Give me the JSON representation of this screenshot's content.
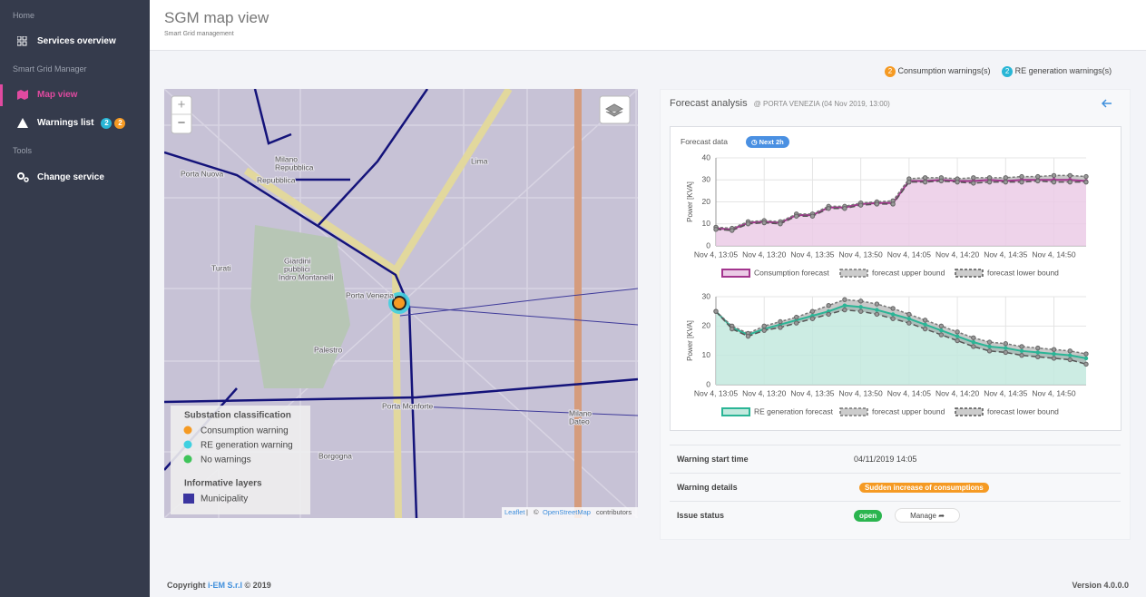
{
  "sidebar": {
    "sections": [
      {
        "title": "Home",
        "items": [
          "Services overview"
        ]
      },
      {
        "title": "Smart Grid Manager",
        "items": [
          "Map view",
          "Warnings list"
        ]
      },
      {
        "title": "Tools",
        "items": [
          "Change service"
        ]
      }
    ],
    "warning_badges": [
      2,
      2
    ]
  },
  "header": {
    "title": "SGM map view",
    "subtitle": "Smart Grid management"
  },
  "warnings": [
    {
      "count": 2,
      "label": "Consumption warnings(s)"
    },
    {
      "count": 2,
      "label": "RE generation warnings(s)"
    }
  ],
  "map": {
    "labels": [
      "Porta Nuova",
      "Milano",
      "Repubblica",
      "Repubblica",
      "Lima",
      "Turati",
      "Giardini",
      "pubblici",
      "Indro Montanelli",
      "Porta Venezia",
      "Palestro",
      "Porta Monforte",
      "Milano",
      "Dateo",
      "Borgogna"
    ],
    "zoom": [
      "+",
      "−"
    ],
    "legend": {
      "title": "Substation classification",
      "items": [
        "Consumption warning",
        "RE generation warning",
        "No warnings"
      ],
      "layers_title": "Informative layers",
      "layers": [
        "Municipality"
      ]
    },
    "attribution": [
      "Leaflet",
      "|",
      "©",
      "OpenStreetMap",
      "contributors"
    ]
  },
  "forecast": {
    "title": "Forecast analysis",
    "location": "@ PORTA VENEZIA (04 Nov 2019, 13:00)",
    "box_title": "Forecast data",
    "badge": "Next 2h"
  },
  "details": {
    "rows": [
      [
        "Warning start time",
        "04/11/2019 14:05"
      ],
      [
        "Warning details",
        "Sudden increase of consumptions"
      ],
      [
        "Issue status",
        "open"
      ]
    ],
    "button": "Manage"
  },
  "footer": {
    "copyright": "Copyright",
    "company": "i-EM S.r.l",
    "year": "© 2019",
    "version": "Version 4.0.0.0"
  },
  "chart_data": [
    {
      "type": "line",
      "ylabel": "Power [KVA]",
      "grid": true,
      "categories": [
        "Nov 4, 13:05",
        null,
        null,
        "Nov 4, 13:20",
        null,
        null,
        "Nov 4, 13:35",
        null,
        null,
        "Nov 4, 13:50",
        null,
        null,
        "Nov 4, 14:05",
        null,
        null,
        "Nov 4, 14:20",
        null,
        null,
        "Nov 4, 14:35",
        null,
        null,
        "Nov 4, 14:50",
        null,
        null
      ],
      "ylim": [
        0,
        40
      ],
      "yticks": [
        0,
        10,
        20,
        30,
        40
      ],
      "series": [
        {
          "name": "Consumption forecast",
          "color": "#a3358e",
          "fill": "#ebcbe6",
          "values": [
            8,
            7.5,
            10.5,
            11,
            10.5,
            14,
            14,
            17.5,
            17.5,
            19,
            19.5,
            19.5,
            29.5,
            29.5,
            30,
            29.5,
            29.5,
            30,
            29.5,
            30,
            30,
            30,
            30,
            29.5
          ]
        },
        {
          "name": "forecast upper bound",
          "color": "#777777",
          "values": [
            8.5,
            8,
            11,
            11.5,
            11,
            14.5,
            14.5,
            18,
            18,
            19.5,
            20,
            20.5,
            30.5,
            31,
            31,
            30.5,
            31,
            31,
            31,
            31.5,
            31.5,
            32,
            32,
            31.5
          ]
        },
        {
          "name": "forecast lower bound",
          "color": "#555555",
          "values": [
            7.5,
            7,
            10,
            10.5,
            10,
            13.5,
            13.5,
            17,
            17,
            18.5,
            19,
            19,
            29,
            29,
            29.5,
            29,
            28.5,
            29,
            29,
            29,
            29.5,
            29,
            29,
            29
          ]
        }
      ]
    },
    {
      "type": "line",
      "ylabel": "Power [KVA]",
      "grid": true,
      "categories": [
        "Nov 4, 13:05",
        null,
        null,
        "Nov 4, 13:20",
        null,
        null,
        "Nov 4, 13:35",
        null,
        null,
        "Nov 4, 13:50",
        null,
        null,
        "Nov 4, 14:05",
        null,
        null,
        "Nov 4, 14:20",
        null,
        null,
        "Nov 4, 14:35",
        null,
        null,
        "Nov 4, 14:50",
        null,
        null
      ],
      "ylim": [
        0,
        30
      ],
      "yticks": [
        0,
        10,
        20,
        30
      ],
      "series": [
        {
          "name": "RE generation forecast",
          "color": "#2bb596",
          "fill": "#c3e9de",
          "values": [
            25,
            19.5,
            17,
            19,
            20.5,
            22,
            23.5,
            25,
            27,
            26.5,
            25.5,
            24,
            22.5,
            20.5,
            18.5,
            16.5,
            14.5,
            13,
            12.5,
            11.5,
            11,
            10.5,
            10,
            9
          ]
        },
        {
          "name": "forecast upper bound",
          "color": "#777777",
          "values": [
            25,
            20,
            17.5,
            20,
            21.5,
            23,
            25,
            27,
            29,
            28.5,
            27.5,
            26,
            24,
            22,
            20,
            18,
            16,
            14.5,
            14,
            13,
            12.5,
            12,
            11.5,
            10.5
          ]
        },
        {
          "name": "forecast lower bound",
          "color": "#555555",
          "values": [
            25,
            19,
            16.5,
            18.5,
            19.5,
            21,
            22.5,
            24,
            25.5,
            25,
            24,
            22.5,
            21,
            19,
            17,
            15,
            13,
            11.5,
            11,
            10,
            9.5,
            9,
            8.5,
            7
          ]
        }
      ]
    }
  ]
}
